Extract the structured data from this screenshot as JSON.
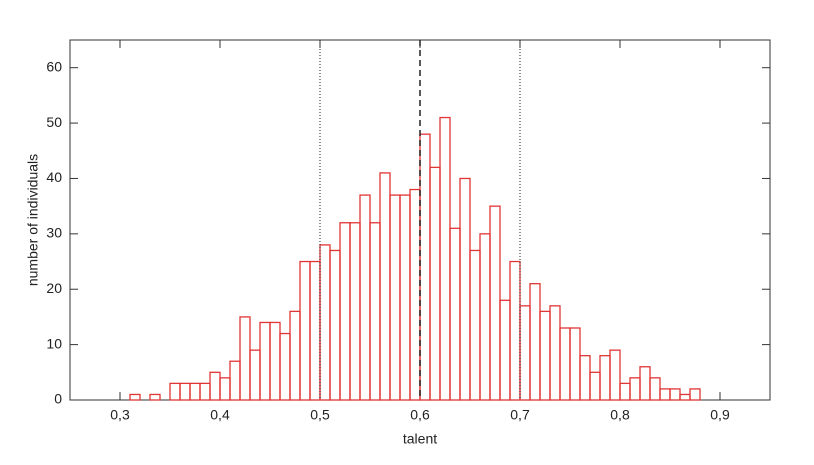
{
  "chart_data": {
    "type": "histogram",
    "x_label": "talent",
    "y_label": "number of individuals",
    "bins": [
      0.31,
      0.32,
      0.33,
      0.34,
      0.35,
      0.36,
      0.37,
      0.38,
      0.39,
      0.4,
      0.41,
      0.42,
      0.43,
      0.44,
      0.45,
      0.46,
      0.47,
      0.48,
      0.49,
      0.5,
      0.51,
      0.52,
      0.53,
      0.54,
      0.55,
      0.56,
      0.57,
      0.58,
      0.59,
      0.6,
      0.61,
      0.62,
      0.63,
      0.64,
      0.65,
      0.66,
      0.67,
      0.68,
      0.69,
      0.7,
      0.71,
      0.72,
      0.73,
      0.74,
      0.75,
      0.76,
      0.77,
      0.78,
      0.79,
      0.8,
      0.81,
      0.82,
      0.83,
      0.84,
      0.85,
      0.86,
      0.87,
      0.88
    ],
    "values": [
      1,
      0,
      1,
      0,
      3,
      3,
      3,
      3,
      5,
      4,
      7,
      15,
      9,
      14,
      14,
      12,
      16,
      25,
      25,
      28,
      27,
      32,
      32,
      37,
      32,
      41,
      37,
      37,
      38,
      48,
      42,
      51,
      31,
      40,
      27,
      30,
      35,
      18,
      25,
      17,
      21,
      16,
      17,
      13,
      13,
      8,
      5,
      8,
      9,
      3,
      4,
      6,
      4,
      2,
      2,
      1,
      2
    ],
    "color": "#e03535",
    "xlim": [
      0.25,
      0.95
    ],
    "ylim": [
      0,
      65
    ],
    "xticks": [
      {
        "value": 0.3,
        "label": "0,3"
      },
      {
        "value": 0.4,
        "label": "0,4"
      },
      {
        "value": 0.5,
        "label": "0,5"
      },
      {
        "value": 0.6,
        "label": "0,6"
      },
      {
        "value": 0.7,
        "label": "0,7"
      },
      {
        "value": 0.8,
        "label": "0,8"
      },
      {
        "value": 0.9,
        "label": "0,9"
      }
    ],
    "yticks": [
      0,
      10,
      20,
      30,
      40,
      50,
      60
    ],
    "vlines": [
      {
        "value": 0.5,
        "style": "dotted"
      },
      {
        "value": 0.6,
        "style": "dashed"
      },
      {
        "value": 0.7,
        "style": "dotted"
      }
    ]
  }
}
